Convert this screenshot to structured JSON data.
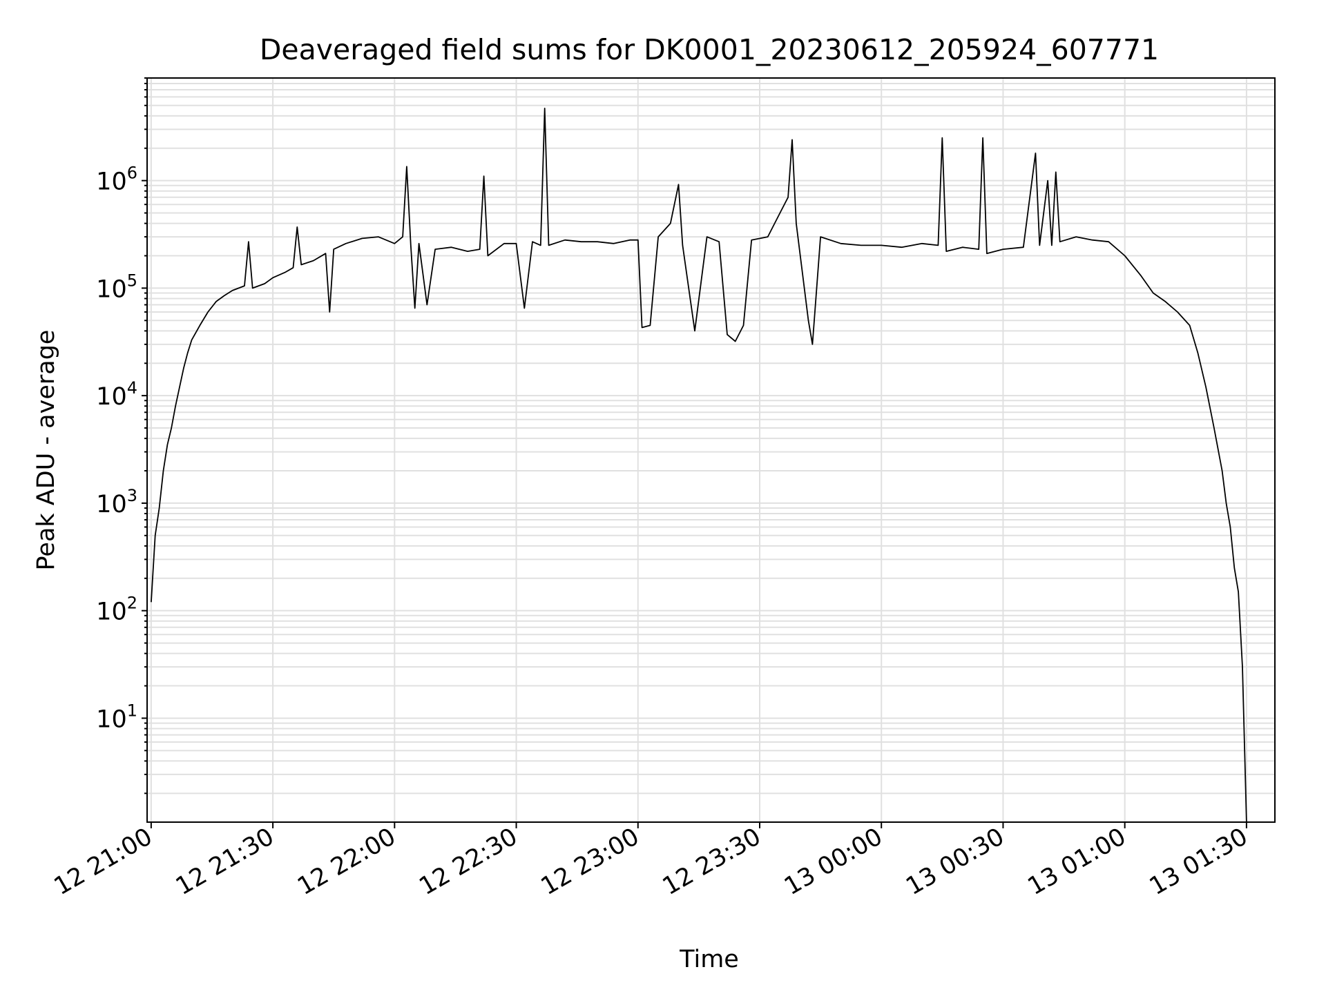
{
  "chart_data": {
    "type": "line",
    "title": "Deaveraged field sums for DK0001_20230612_205924_607771",
    "xlabel": "Time",
    "ylabel": "Peak ADU - average",
    "y_scale": "log",
    "grid": true,
    "line_color": "#000000",
    "grid_color": "#e0e0e0",
    "xlim": [
      "2023-06-12 20:59",
      "2023-06-13 01:37"
    ],
    "ylim": [
      1.08,
      9000000
    ],
    "x_ticks": [
      {
        "label": "12 21:00",
        "t": "2023-06-12 21:00"
      },
      {
        "label": "12 21:30",
        "t": "2023-06-12 21:30"
      },
      {
        "label": "12 22:00",
        "t": "2023-06-12 22:00"
      },
      {
        "label": "12 22:30",
        "t": "2023-06-12 22:30"
      },
      {
        "label": "12 23:00",
        "t": "2023-06-12 23:00"
      },
      {
        "label": "12 23:30",
        "t": "2023-06-12 23:30"
      },
      {
        "label": "13 00:00",
        "t": "2023-06-13 00:00"
      },
      {
        "label": "13 00:30",
        "t": "2023-06-13 00:30"
      },
      {
        "label": "13 01:00",
        "t": "2023-06-13 01:00"
      },
      {
        "label": "13 01:30",
        "t": "2023-06-13 01:30"
      }
    ],
    "y_ticks": [
      {
        "base": "10",
        "exp": "1",
        "value": 10
      },
      {
        "base": "10",
        "exp": "2",
        "value": 100
      },
      {
        "base": "10",
        "exp": "3",
        "value": 1000
      },
      {
        "base": "10",
        "exp": "4",
        "value": 10000
      },
      {
        "base": "10",
        "exp": "5",
        "value": 100000
      },
      {
        "base": "10",
        "exp": "6",
        "value": 1000000
      }
    ],
    "series": [
      {
        "points": [
          [
            "2023-06-12 21:00",
            120
          ],
          [
            "2023-06-12 21:01",
            500
          ],
          [
            "2023-06-12 21:02",
            900
          ],
          [
            "2023-06-12 21:03",
            2000
          ],
          [
            "2023-06-12 21:04",
            3500
          ],
          [
            "2023-06-12 21:05",
            5000
          ],
          [
            "2023-06-12 21:06",
            8000
          ],
          [
            "2023-06-12 21:07",
            12000
          ],
          [
            "2023-06-12 21:08",
            18000
          ],
          [
            "2023-06-12 21:09",
            25000
          ],
          [
            "2023-06-12 21:10",
            33000
          ],
          [
            "2023-06-12 21:12",
            45000
          ],
          [
            "2023-06-12 21:14",
            60000
          ],
          [
            "2023-06-12 21:16",
            75000
          ],
          [
            "2023-06-12 21:18",
            85000
          ],
          [
            "2023-06-12 21:20",
            95000
          ],
          [
            "2023-06-12 21:23",
            105000
          ],
          [
            "2023-06-12 21:24",
            270000
          ],
          [
            "2023-06-12 21:25",
            100000
          ],
          [
            "2023-06-12 21:28",
            110000
          ],
          [
            "2023-06-12 21:30",
            125000
          ],
          [
            "2023-06-12 21:33",
            140000
          ],
          [
            "2023-06-12 21:35",
            155000
          ],
          [
            "2023-06-12 21:36",
            370000
          ],
          [
            "2023-06-12 21:37",
            165000
          ],
          [
            "2023-06-12 21:40",
            180000
          ],
          [
            "2023-06-12 21:43",
            210000
          ],
          [
            "2023-06-12 21:44",
            60000
          ],
          [
            "2023-06-12 21:45",
            230000
          ],
          [
            "2023-06-12 21:48",
            260000
          ],
          [
            "2023-06-12 21:52",
            290000
          ],
          [
            "2023-06-12 21:56",
            300000
          ],
          [
            "2023-06-12 22:00",
            260000
          ],
          [
            "2023-06-12 22:02",
            300000
          ],
          [
            "2023-06-12 22:03",
            1350000
          ],
          [
            "2023-06-12 22:04",
            250000
          ],
          [
            "2023-06-12 22:05",
            65000
          ],
          [
            "2023-06-12 22:06",
            260000
          ],
          [
            "2023-06-12 22:08",
            70000
          ],
          [
            "2023-06-12 22:10",
            230000
          ],
          [
            "2023-06-12 22:14",
            240000
          ],
          [
            "2023-06-12 22:18",
            220000
          ],
          [
            "2023-06-12 22:21",
            230000
          ],
          [
            "2023-06-12 22:22",
            1100000
          ],
          [
            "2023-06-12 22:23",
            200000
          ],
          [
            "2023-06-12 22:27",
            260000
          ],
          [
            "2023-06-12 22:30",
            260000
          ],
          [
            "2023-06-12 22:32",
            65000
          ],
          [
            "2023-06-12 22:34",
            270000
          ],
          [
            "2023-06-12 22:36",
            250000
          ],
          [
            "2023-06-12 22:37",
            4700000
          ],
          [
            "2023-06-12 22:38",
            250000
          ],
          [
            "2023-06-12 22:42",
            280000
          ],
          [
            "2023-06-12 22:46",
            270000
          ],
          [
            "2023-06-12 22:50",
            270000
          ],
          [
            "2023-06-12 22:54",
            260000
          ],
          [
            "2023-06-12 22:58",
            280000
          ],
          [
            "2023-06-12 23:00",
            280000
          ],
          [
            "2023-06-12 23:01",
            43000
          ],
          [
            "2023-06-12 23:03",
            45000
          ],
          [
            "2023-06-12 23:05",
            300000
          ],
          [
            "2023-06-12 23:08",
            400000
          ],
          [
            "2023-06-12 23:10",
            920000
          ],
          [
            "2023-06-12 23:11",
            250000
          ],
          [
            "2023-06-12 23:14",
            40000
          ],
          [
            "2023-06-12 23:17",
            300000
          ],
          [
            "2023-06-12 23:20",
            270000
          ],
          [
            "2023-06-12 23:22",
            37000
          ],
          [
            "2023-06-12 23:24",
            32000
          ],
          [
            "2023-06-12 23:26",
            45000
          ],
          [
            "2023-06-12 23:28",
            280000
          ],
          [
            "2023-06-12 23:32",
            300000
          ],
          [
            "2023-06-12 23:35",
            500000
          ],
          [
            "2023-06-12 23:37",
            700000
          ],
          [
            "2023-06-12 23:38",
            2400000
          ],
          [
            "2023-06-12 23:39",
            400000
          ],
          [
            "2023-06-12 23:42",
            50000
          ],
          [
            "2023-06-12 23:43",
            30000
          ],
          [
            "2023-06-12 23:45",
            300000
          ],
          [
            "2023-06-12 23:50",
            260000
          ],
          [
            "2023-06-12 23:55",
            250000
          ],
          [
            "2023-06-13 00:00",
            250000
          ],
          [
            "2023-06-13 00:05",
            240000
          ],
          [
            "2023-06-13 00:10",
            260000
          ],
          [
            "2023-06-13 00:14",
            250000
          ],
          [
            "2023-06-13 00:15",
            2500000
          ],
          [
            "2023-06-13 00:16",
            220000
          ],
          [
            "2023-06-13 00:20",
            240000
          ],
          [
            "2023-06-13 00:24",
            230000
          ],
          [
            "2023-06-13 00:25",
            2500000
          ],
          [
            "2023-06-13 00:26",
            210000
          ],
          [
            "2023-06-13 00:30",
            230000
          ],
          [
            "2023-06-13 00:35",
            240000
          ],
          [
            "2023-06-13 00:38",
            1800000
          ],
          [
            "2023-06-13 00:39",
            250000
          ],
          [
            "2023-06-13 00:41",
            1000000
          ],
          [
            "2023-06-13 00:42",
            250000
          ],
          [
            "2023-06-13 00:43",
            1200000
          ],
          [
            "2023-06-13 00:44",
            270000
          ],
          [
            "2023-06-13 00:48",
            300000
          ],
          [
            "2023-06-13 00:52",
            280000
          ],
          [
            "2023-06-13 00:56",
            270000
          ],
          [
            "2023-06-13 01:00",
            200000
          ],
          [
            "2023-06-13 01:04",
            130000
          ],
          [
            "2023-06-13 01:07",
            90000
          ],
          [
            "2023-06-13 01:10",
            75000
          ],
          [
            "2023-06-13 01:13",
            60000
          ],
          [
            "2023-06-13 01:16",
            45000
          ],
          [
            "2023-06-13 01:18",
            25000
          ],
          [
            "2023-06-13 01:20",
            12000
          ],
          [
            "2023-06-13 01:22",
            5000
          ],
          [
            "2023-06-13 01:24",
            2000
          ],
          [
            "2023-06-13 01:25",
            1000
          ],
          [
            "2023-06-13 01:26",
            600
          ],
          [
            "2023-06-13 01:27",
            250
          ],
          [
            "2023-06-13 01:28",
            150
          ],
          [
            "2023-06-13 01:29",
            30
          ],
          [
            "2023-06-13 01:30",
            1.08
          ]
        ]
      }
    ]
  }
}
